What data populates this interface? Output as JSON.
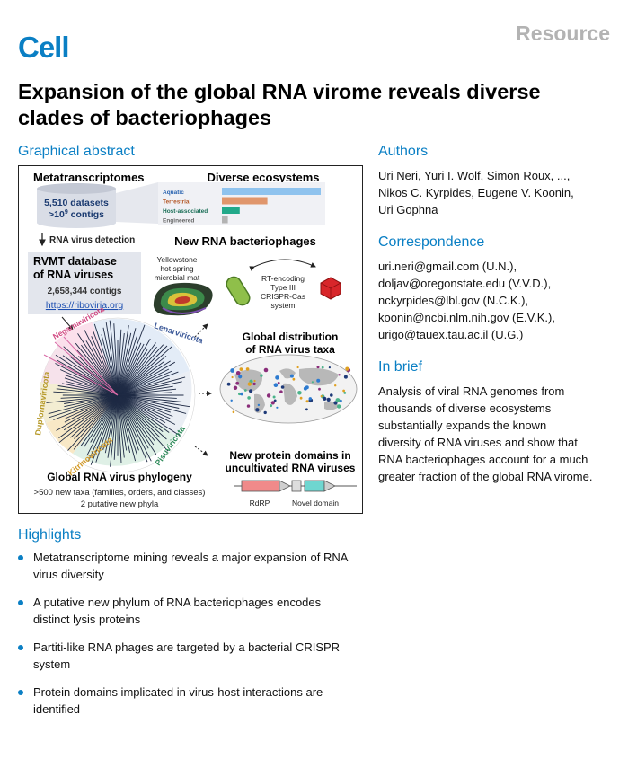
{
  "header": {
    "journal_logo": "Cell",
    "section_label": "Resource"
  },
  "title": "Expansion of the global RNA virome reveals diverse clades of bacteriophages",
  "graphical_abstract": {
    "heading": "Graphical abstract",
    "metatranscriptomes_title": "Metatranscriptomes",
    "datasets_line": "5,510 datasets",
    "contigs_line": ">10",
    "contigs_exp": "9",
    "contigs_word": " contigs",
    "detection_label": "RNA virus detection",
    "rvmt_title_1": "RVMT database",
    "rvmt_title_2": "of RNA viruses",
    "rvmt_contigs": "2,658,344 contigs",
    "rvmt_url": "https://riboviria.org",
    "ecosystems_title": "Diverse ecosystems",
    "ecosystems": [
      {
        "label": "Aquatic",
        "value": 1.0,
        "color": "#8fc3ee"
      },
      {
        "label": "Terrestrial",
        "value": 0.46,
        "color": "#e0966c"
      },
      {
        "label": "Host-associated",
        "value": 0.18,
        "color": "#22a98a"
      },
      {
        "label": "Engineered",
        "value": 0.06,
        "color": "#b3b3b3"
      }
    ],
    "bacteriophages_title": "New RNA bacteriophages",
    "mat_label_1": "Yellowstone",
    "mat_label_2": "hot spring",
    "mat_label_3": "microbial mat",
    "crispr_label_1": "RT-encoding",
    "crispr_label_2": "Type III",
    "crispr_label_3": "CRISPR-Cas",
    "crispr_label_4": "system",
    "phyla": [
      "Negarnaviricota",
      "Lenarviricota",
      "Duplornaviricota",
      "Kitrinoviricota",
      "Pisuviricota"
    ],
    "global_dist_title_1": "Global distribution",
    "global_dist_title_2": "of RNA virus taxa",
    "domains_title_1": "New protein domains in",
    "domains_title_2": "uncultivated RNA viruses",
    "rdrp_label": "RdRP",
    "novel_domain_label": "Novel domain",
    "phylogeny_title": "Global RNA virus phylogeny",
    "phylogeny_sub_1": ">500 new taxa (families, orders, and classes)",
    "phylogeny_sub_2": "2 putative new phyla"
  },
  "highlights": {
    "heading": "Highlights",
    "items": [
      {
        "l1": "Metatranscriptome mining reveals a major expansion of RNA",
        "l2": "virus diversity"
      },
      {
        "l1": "A putative new phylum of RNA bacteriophages encodes",
        "l2": "distinct lysis proteins"
      },
      {
        "l1": "Partiti-like RNA phages are targeted by a bacterial CRISPR",
        "l2": "system"
      },
      {
        "l1": "Protein domains implicated in virus-host interactions are",
        "l2": "identified"
      }
    ]
  },
  "authors": {
    "heading": "Authors",
    "lines": [
      "Uri Neri, Yuri I. Wolf, Simon Roux, ...,",
      "Nikos C. Kyrpides, Eugene V. Koonin,",
      "Uri Gophna"
    ]
  },
  "correspondence": {
    "heading": "Correspondence",
    "emails": [
      "uri.neri@gmail.com (U.N.),",
      "doljav@oregonstate.edu (V.V.D.),",
      "nckyrpides@lbl.gov (N.C.K.),",
      "koonin@ncbi.nlm.nih.gov (E.V.K.),",
      "urigo@tauex.tau.ac.il (U.G.)"
    ]
  },
  "in_brief": {
    "heading": "In brief",
    "lines": [
      "Analysis of viral RNA genomes from",
      "thousands of diverse ecosystems",
      "substantially expands the known",
      "diversity of RNA viruses and show that",
      "RNA bacteriophages account for a much",
      "greater fraction of the global RNA virome."
    ]
  }
}
